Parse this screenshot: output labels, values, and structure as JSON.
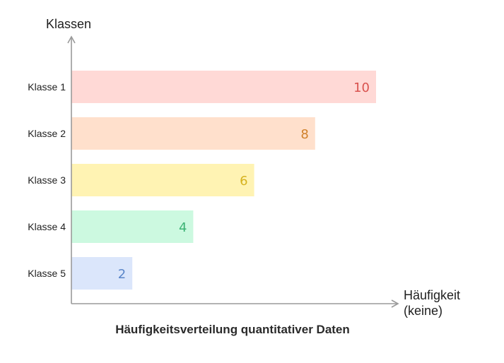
{
  "chart_data": {
    "type": "bar",
    "orientation": "horizontal",
    "title": "Häufigkeitsverteilung quantitativer Daten",
    "ylabel": "Klassen",
    "xlabel_lines": [
      "Häufigkeit",
      "(keine)"
    ],
    "categories": [
      "Klasse 1",
      "Klasse 2",
      "Klasse 3",
      "Klasse 4",
      "Klasse 5"
    ],
    "values": [
      10,
      8,
      6,
      4,
      2
    ],
    "value_labels": [
      "10",
      "8",
      "6",
      "4",
      "2"
    ],
    "xlim": [
      0,
      10
    ],
    "grid": false,
    "legend": "none",
    "colors": {
      "bar_fills": [
        "#ffd9d6",
        "#ffe0cc",
        "#fff3b3",
        "#ccf9e0",
        "#dbe6fb"
      ],
      "label_colors": [
        "#d9534f",
        "#d0812b",
        "#d6b21f",
        "#3cb374",
        "#5b86c9"
      ],
      "axis": "#9a9a9a"
    }
  }
}
